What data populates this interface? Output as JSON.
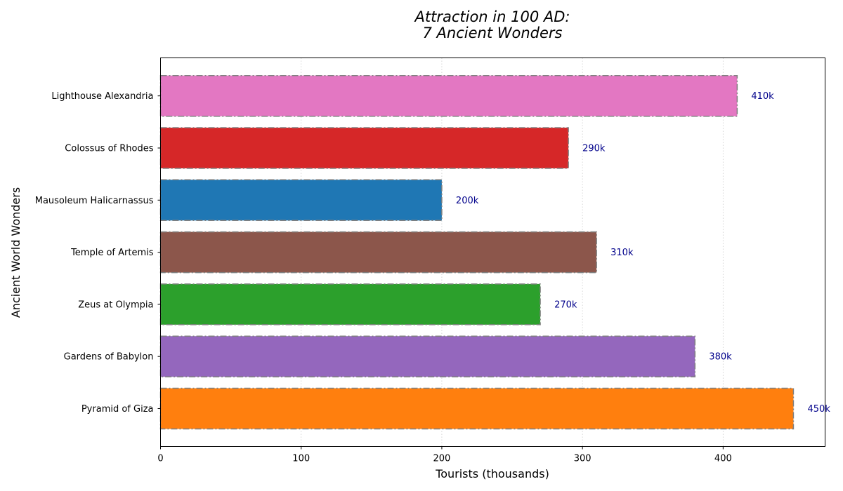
{
  "chart_data": {
    "type": "bar",
    "orientation": "horizontal",
    "title_lines": [
      "Attraction in 100 AD:",
      "7 Ancient Wonders"
    ],
    "xlabel": "Tourists (thousands)",
    "ylabel": "Ancient World Wonders",
    "xlim": [
      0,
      472.5
    ],
    "xticks": [
      0,
      100,
      200,
      300,
      400
    ],
    "grid": "x-dotted",
    "legend": "none",
    "value_label_suffix": "k",
    "bar_edge_color": "#808080",
    "bar_edge_style": "dash-dot",
    "categories": [
      "Pyramid of Giza",
      "Gardens of Babylon",
      "Zeus at Olympia",
      "Temple of Artemis",
      "Mausoleum Halicarnassus",
      "Colossus of Rhodes",
      "Lighthouse Alexandria"
    ],
    "values": [
      450,
      380,
      270,
      310,
      200,
      290,
      410
    ],
    "colors": [
      "#ff7f0e",
      "#9467bd",
      "#2ca02c",
      "#8c564b",
      "#1f77b4",
      "#d62728",
      "#e377c2"
    ],
    "value_labels": [
      "450k",
      "380k",
      "270k",
      "310k",
      "200k",
      "290k",
      "410k"
    ]
  }
}
